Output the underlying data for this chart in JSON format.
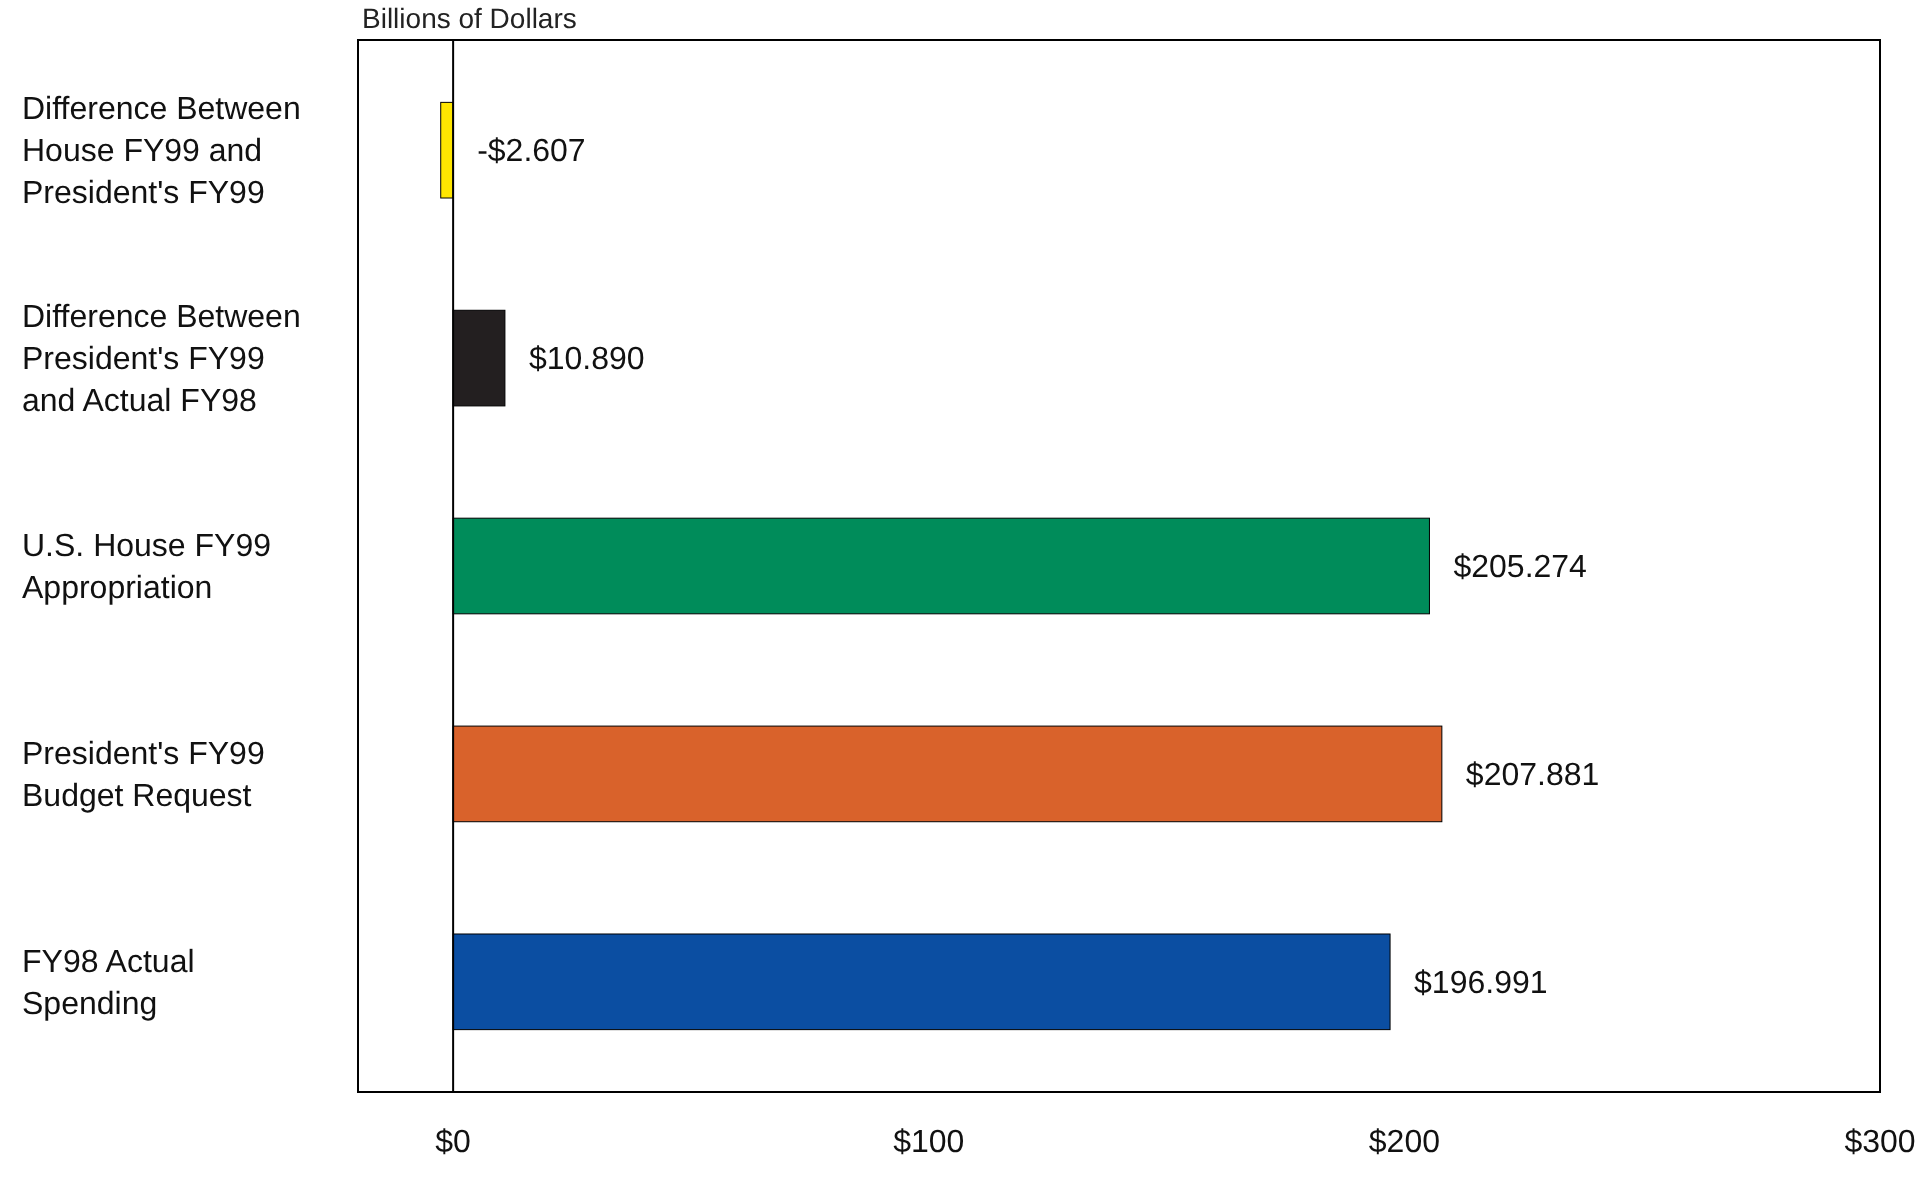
{
  "chart_data": {
    "type": "bar",
    "orientation": "horizontal",
    "xlabel": "Billions of Dollars",
    "categories": [
      "Difference Between House FY99 and President's FY99",
      "Difference Between President's FY99 and Actual FY98",
      "U.S. House FY99 Appropriation",
      "President's FY99 Budget Request",
      "FY98 Actual Spending"
    ],
    "values": [
      -2.607,
      10.89,
      205.274,
      207.881,
      196.991
    ],
    "colors": [
      "#ffe600",
      "#231f20",
      "#008c5a",
      "#d9622b",
      "#0b4ea2"
    ],
    "value_labels": [
      "-$2.607",
      "$10.890",
      "$205.274",
      "$207.881",
      "$196.991"
    ],
    "xlim": [
      -20,
      300
    ],
    "xticks": [
      {
        "value": 0,
        "label": "$0"
      },
      {
        "value": 100,
        "label": "$100"
      },
      {
        "value": 200,
        "label": "$200"
      },
      {
        "value": 300,
        "label": "$300"
      }
    ],
    "tick_labels": "xy"
  }
}
